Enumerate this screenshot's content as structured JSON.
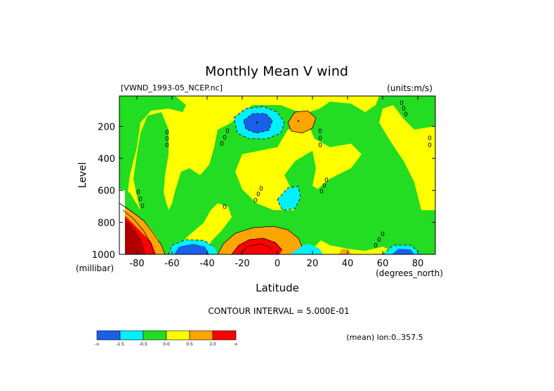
{
  "chart_data": {
    "type": "contour",
    "title": "Monthly Mean V wind",
    "dataset_label": "[VWND_1993-05_NCEP.nc]",
    "units_label": "(units:m/s)",
    "xlabel": "Latitude",
    "x_units_label": "(degrees_north)",
    "ylabel": "Level",
    "y_units_label": "(millibar)",
    "x_ticks": [
      "-80",
      "-60",
      "-40",
      "-20",
      "0",
      "20",
      "40",
      "60",
      "80"
    ],
    "x_tick_values": [
      -80,
      -60,
      -40,
      -20,
      0,
      20,
      40,
      60,
      80
    ],
    "y_ticks": [
      "200",
      "400",
      "600",
      "800",
      "1000"
    ],
    "y_tick_values": [
      200,
      400,
      600,
      800,
      1000
    ],
    "xlim": [
      -90,
      90
    ],
    "ylim": [
      1000,
      10
    ],
    "contour_interval_text": "CONTOUR INTERVAL = 5.000E-01",
    "footer_note": "(mean) lon:0..357.5",
    "colorbar": {
      "colors": [
        "#1a5fe8",
        "#00f0ff",
        "#22dd22",
        "#ffff00",
        "#ffa500",
        "#ff0000"
      ],
      "labels": [
        "-∞",
        "-1.5",
        "-0.5",
        "0.0",
        "0.5",
        "1.0",
        "∞"
      ]
    },
    "features": [
      {
        "kind": "min",
        "lat": -10,
        "level": 170,
        "value_class": "blue",
        "color": "#1a5fe8"
      },
      {
        "kind": "max",
        "lat": 12,
        "level": 170,
        "value_class": "orange",
        "color": "#ffa500"
      },
      {
        "kind": "max",
        "lat": -14,
        "level": 960,
        "value_class": "red",
        "color": "#ff0000"
      },
      {
        "kind": "max",
        "lat": -82,
        "level": 960,
        "value_class": "dark red",
        "color": "#b00000"
      },
      {
        "kind": "min",
        "lat": -55,
        "level": 980,
        "value_class": "blue",
        "color": "#1a5fe8"
      },
      {
        "kind": "min",
        "lat": 12,
        "level": 640,
        "value_class": "cyan",
        "color": "#00f0ff"
      },
      {
        "kind": "min",
        "lat": 70,
        "level": 990,
        "value_class": "cyan",
        "color": "#00f0ff"
      }
    ]
  }
}
